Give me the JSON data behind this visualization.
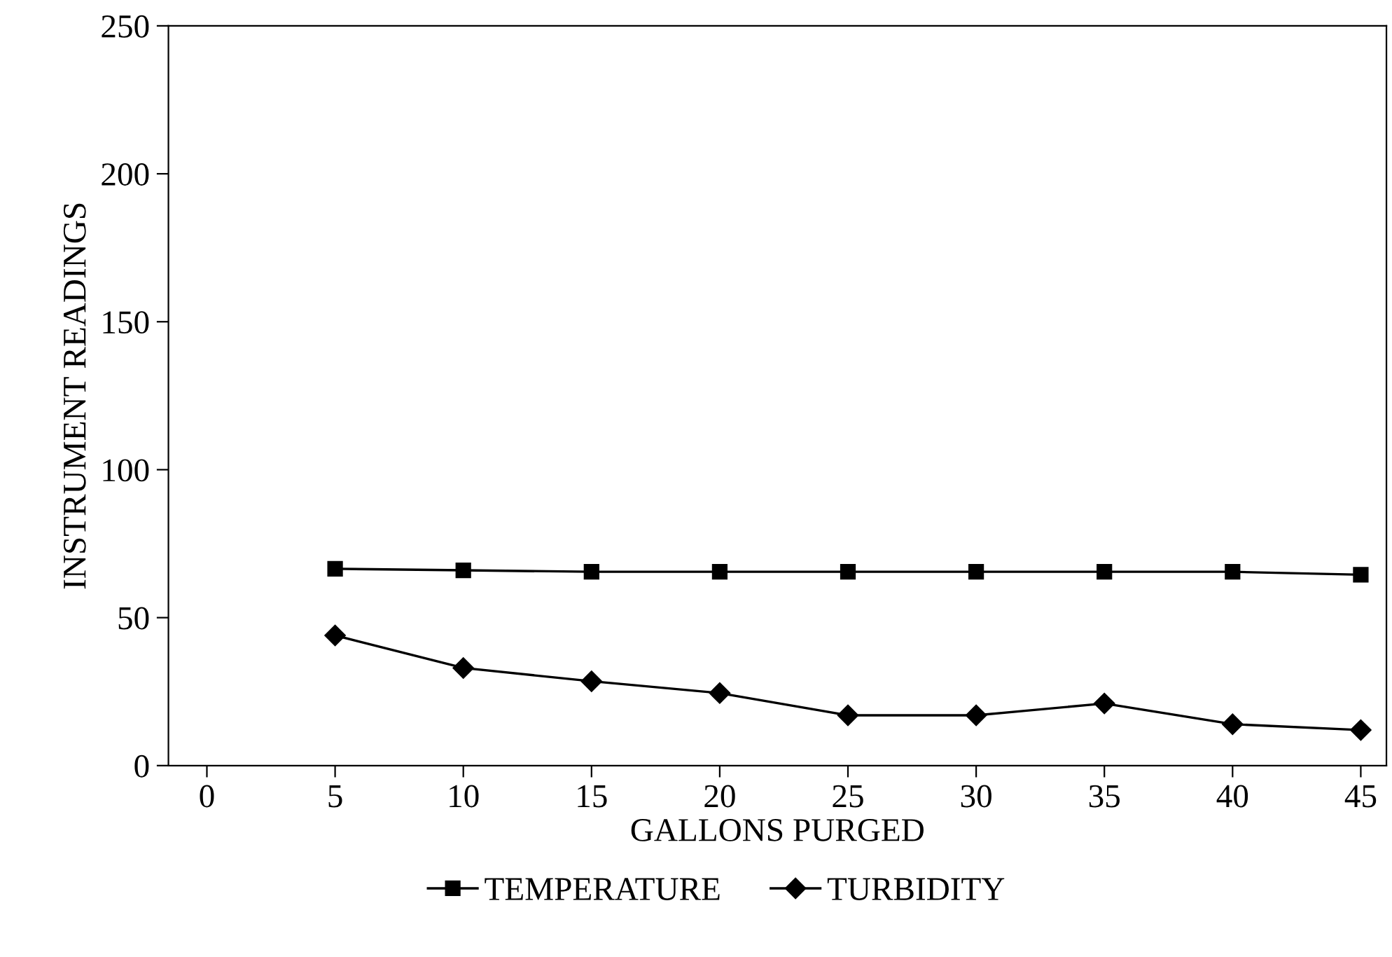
{
  "chart_data": {
    "type": "line",
    "xlabel": "GALLONS PURGED",
    "ylabel": "INSTRUMENT READINGS",
    "x": [
      5,
      10,
      15,
      20,
      25,
      30,
      35,
      40,
      45
    ],
    "series": [
      {
        "name": "TEMPERATURE",
        "color": "#000000",
        "marker": "square",
        "values": [
          66.5,
          66,
          65.5,
          65.5,
          65.5,
          65.5,
          65.5,
          65.5,
          64.5
        ]
      },
      {
        "name": "TURBIDITY",
        "color": "#000000",
        "marker": "diamond",
        "values": [
          44,
          33,
          28.5,
          24.5,
          17,
          17,
          21,
          14,
          12
        ]
      }
    ],
    "xlim": [
      -1.5,
      46
    ],
    "xticks": [
      0,
      5,
      10,
      15,
      20,
      25,
      30,
      35,
      40,
      45
    ],
    "ylim": [
      0,
      250
    ],
    "yticks": [
      0,
      50,
      100,
      150,
      200,
      250
    ],
    "grid": false,
    "legend": "bottom",
    "line_style": "solid"
  }
}
